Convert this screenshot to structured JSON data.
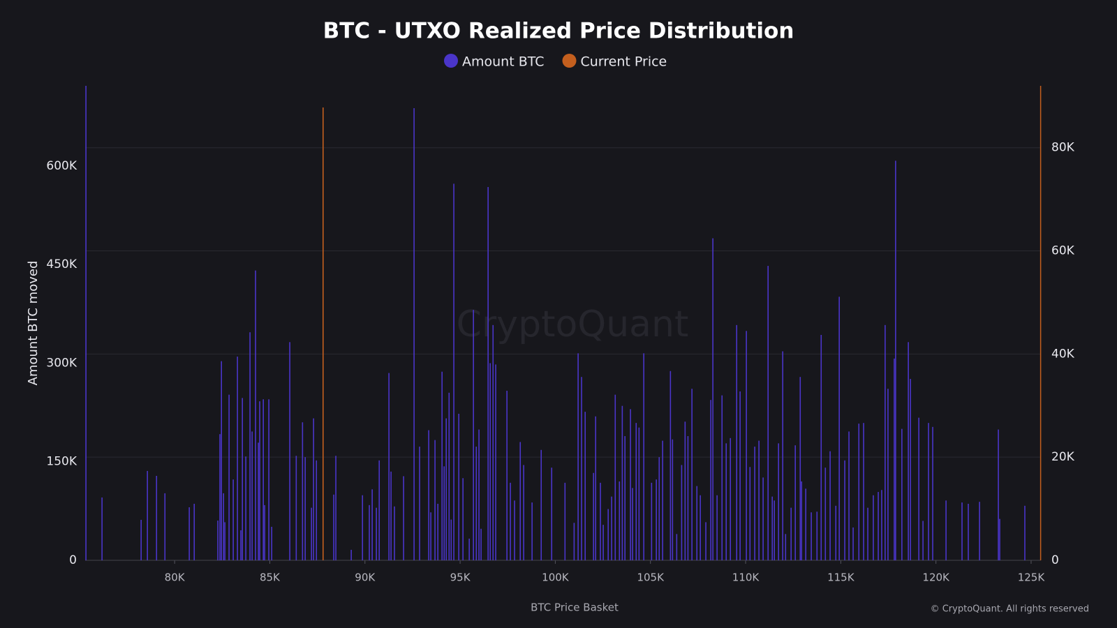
{
  "chart_data": {
    "type": "bar",
    "title": "BTC - UTXO Realized Price Distribution",
    "x_label": "BTC Price Basket",
    "y_label": "Amount BTC moved",
    "watermark": "CryptoQuant",
    "credit": "© CryptoQuant. All rights reserved",
    "xlim": [
      75300,
      125500
    ],
    "ylim": [
      0,
      722000
    ],
    "y2lim": [
      0,
      92000
    ],
    "xticks": [
      {
        "value": 80000,
        "label": "80K"
      },
      {
        "value": 85000,
        "label": "85K"
      },
      {
        "value": 90000,
        "label": "90K"
      },
      {
        "value": 95000,
        "label": "95K"
      },
      {
        "value": 100000,
        "label": "100K"
      },
      {
        "value": 105000,
        "label": "105K"
      },
      {
        "value": 110000,
        "label": "110K"
      },
      {
        "value": 115000,
        "label": "115K"
      },
      {
        "value": 120000,
        "label": "120K"
      },
      {
        "value": 125000,
        "label": "125K"
      }
    ],
    "yticks": [
      0,
      {
        "value": 150000,
        "label": "150K"
      },
      {
        "value": 300000,
        "label": "300K"
      },
      {
        "value": 450000,
        "label": "450K"
      },
      {
        "value": 600000,
        "label": "600K"
      }
    ],
    "y2ticks": [
      0,
      {
        "value": 20000,
        "label": "20K"
      },
      {
        "value": 40000,
        "label": "40K"
      },
      {
        "value": 60000,
        "label": "60K"
      },
      {
        "value": 80000,
        "label": "80K"
      }
    ],
    "grid": true,
    "legend": "top",
    "series": [
      {
        "name": "Amount BTC",
        "color": "#4a35c9",
        "x": [
          75340,
          76185,
          78240,
          78570,
          79050,
          79490,
          80770,
          81030,
          82270,
          82380,
          82460,
          82570,
          82640,
          82860,
          83080,
          83300,
          83480,
          83560,
          83740,
          83960,
          84070,
          84250,
          84400,
          84470,
          84660,
          84730,
          84950,
          85100,
          86050,
          86390,
          86720,
          86860,
          87190,
          87300,
          87450,
          88360,
          88470,
          89280,
          89870,
          90230,
          90380,
          90600,
          90750,
          91260,
          91370,
          91550,
          92030,
          92580,
          92870,
          93350,
          93460,
          93680,
          93830,
          94050,
          94160,
          94270,
          94420,
          94530,
          94670,
          94930,
          95150,
          95480,
          95700,
          95850,
          95990,
          96100,
          96470,
          96580,
          96730,
          96870,
          97460,
          97640,
          97860,
          98160,
          98340,
          98780,
          99260,
          99810,
          100510,
          100990,
          101200,
          101380,
          101570,
          102010,
          102120,
          102370,
          102520,
          102780,
          102960,
          103150,
          103370,
          103520,
          103660,
          103950,
          104060,
          104250,
          104400,
          104650,
          105060,
          105310,
          105460,
          105640,
          106050,
          106160,
          106380,
          106640,
          106820,
          106970,
          107180,
          107440,
          107620,
          107910,
          108170,
          108280,
          108500,
          108760,
          108980,
          109200,
          109530,
          109710,
          110040,
          110230,
          110480,
          110700,
          110920,
          111180,
          111400,
          111510,
          111730,
          111950,
          112100,
          112390,
          112610,
          112870,
          112940,
          113160,
          113450,
          113750,
          113970,
          114190,
          114440,
          114740,
          114920,
          115210,
          115430,
          115650,
          115950,
          116200,
          116420,
          116710,
          116970,
          117150,
          117330,
          117480,
          117810,
          117880,
          118210,
          118550,
          118660,
          119100,
          119320,
          119610,
          119830,
          120530,
          121370,
          121700,
          122290,
          123280,
          123350,
          124670
        ],
        "values": [
          722000,
          95600,
          61600,
          136000,
          128500,
          102000,
          80700,
          86000,
          60500,
          192000,
          303000,
          102000,
          58000,
          252000,
          123000,
          310000,
          45700,
          247000,
          158000,
          347000,
          196000,
          441000,
          179000,
          242000,
          245000,
          84000,
          245000,
          51000,
          332000,
          159000,
          210000,
          157000,
          80000,
          216000,
          152000,
          100000,
          159000,
          16000,
          99000,
          84000,
          108000,
          80000,
          152000,
          285000,
          135000,
          82000,
          128000,
          688000,
          173000,
          198000,
          73000,
          183000,
          86000,
          287000,
          143000,
          216000,
          255000,
          62000,
          573000,
          223000,
          125000,
          33000,
          381000,
          173000,
          199000,
          48000,
          568000,
          300000,
          358000,
          298000,
          258000,
          118000,
          91000,
          180000,
          145000,
          88000,
          168000,
          141000,
          118000,
          57000,
          315000,
          279000,
          226000,
          133000,
          219000,
          118000,
          54000,
          78000,
          97000,
          252000,
          120000,
          235000,
          189000,
          230000,
          110000,
          209000,
          202000,
          315000,
          118000,
          123000,
          157000,
          182000,
          288000,
          184000,
          40000,
          145000,
          211000,
          189000,
          261000,
          113000,
          99000,
          58000,
          244000,
          490000,
          99000,
          251000,
          178000,
          186000,
          358000,
          257000,
          349000,
          142000,
          173000,
          182000,
          126000,
          448000,
          97000,
          91000,
          178000,
          318000,
          40000,
          80000,
          175000,
          279000,
          120000,
          109000,
          73000,
          74000,
          343000,
          141000,
          166000,
          83000,
          401000,
          152000,
          196000,
          50000,
          208000,
          209000,
          80000,
          99000,
          104000,
          107000,
          358000,
          261000,
          307000,
          608000,
          200000,
          332000,
          276000,
          217000,
          60000,
          209000,
          203000,
          91000,
          88000,
          86000,
          89000,
          199000,
          63000,
          83000
        ]
      },
      {
        "name": "Current Price",
        "color": "#c45f1e",
        "axis": "y2",
        "x": [
          87800
        ],
        "values": [
          87800
        ]
      }
    ]
  }
}
